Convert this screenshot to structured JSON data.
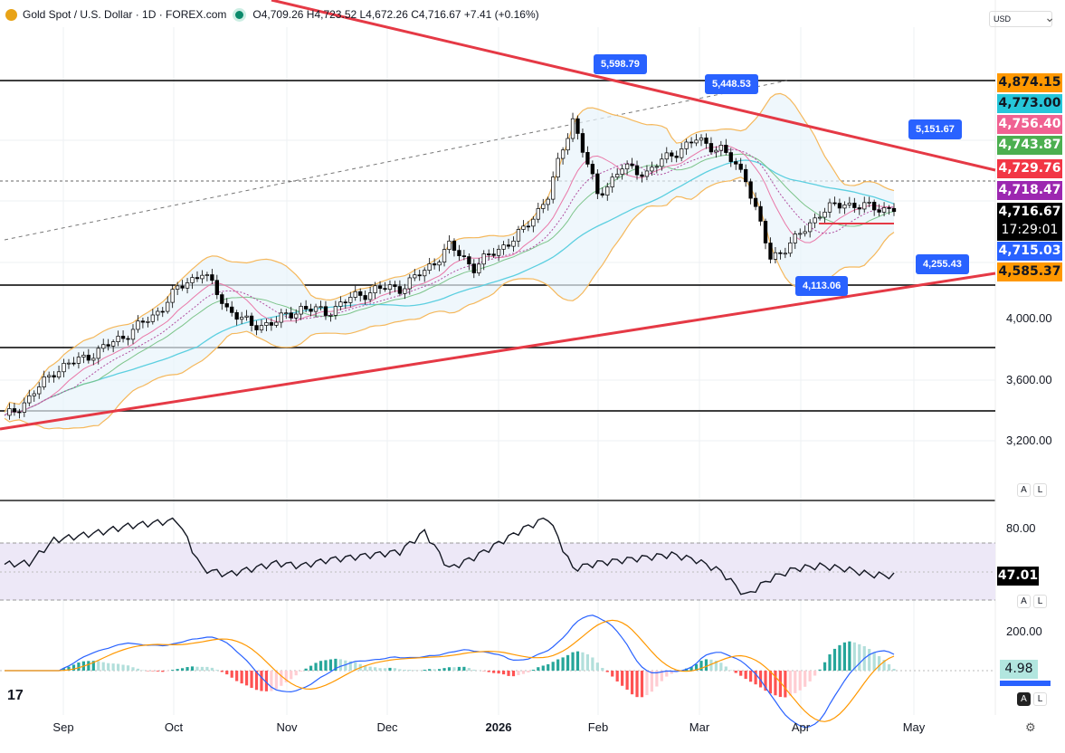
{
  "header": {
    "symbol": "Gold Spot / U.S. Dollar · 1D · FOREX.com",
    "ohlc": "O4,709.26 H4,723.52 L4,672.26 C4,716.67 +7.41 (+0.16%)"
  },
  "currency": "USD",
  "price_labels": [
    {
      "text": "4,874.15",
      "bg": "#ff9800",
      "fg": "#131722"
    },
    {
      "text": "4,773.00",
      "bg": "#26c6da",
      "fg": "#131722"
    },
    {
      "text": "4,756.40",
      "bg": "#f06292",
      "fg": "#ffffff"
    },
    {
      "text": "4,743.87",
      "bg": "#4caf50",
      "fg": "#ffffff"
    },
    {
      "text": "4,729.76",
      "bg": "#f23645",
      "fg": "#ffffff"
    },
    {
      "text": "4,718.47",
      "bg": "#9c27b0",
      "fg": "#ffffff"
    },
    {
      "text": "4,716.67",
      "bg": "#000000",
      "fg": "#ffffff"
    },
    {
      "text": "17:29:01",
      "bg": "#000000",
      "fg": "#ffffff"
    },
    {
      "text": "4,715.03",
      "bg": "#2962ff",
      "fg": "#ffffff"
    },
    {
      "text": "4,585.37",
      "bg": "#ff9800",
      "fg": "#131722"
    }
  ],
  "price_axis": [
    "4,000.00",
    "3,600.00",
    "3,200.00"
  ],
  "rsi_axis": {
    "top": "80.00",
    "value": "47.01"
  },
  "macd_axis": {
    "top": "200.00",
    "value": "4.98"
  },
  "callouts": [
    "5,598.79",
    "5,448.53",
    "5,151.67",
    "4,255.43",
    "4,113.06"
  ],
  "months": [
    "Sep",
    "Oct",
    "Nov",
    "Dec",
    "2026",
    "Feb",
    "Mar",
    "Apr",
    "May"
  ],
  "scale_buttons": {
    "a": "A",
    "l": "L"
  },
  "chart_data": {
    "type": "candlestick",
    "weekly_close": [
      3353,
      3482,
      3660,
      3730,
      3806,
      3906,
      4012,
      4190,
      4306,
      4070,
      3950,
      3980,
      4070,
      4040,
      4130,
      4190,
      4200,
      4306,
      4470,
      4335,
      4450,
      4570,
      4800,
      5300,
      4800,
      4980,
      4950,
      5070,
      5160,
      5100,
      4920,
      4390,
      4510,
      4690,
      4750,
      4720,
      4716
    ],
    "rsi_weekly": [
      55,
      56,
      72,
      75,
      78,
      82,
      84,
      86,
      52,
      48,
      52,
      56,
      54,
      58,
      60,
      62,
      64,
      78,
      52,
      60,
      70,
      80,
      88,
      52,
      56,
      58,
      60,
      62,
      58,
      50,
      33,
      45,
      52,
      54,
      52,
      48,
      47
    ],
    "horizontal_levels": [
      5598.79,
      4255.43,
      4000,
      3600,
      3800
    ],
    "colors": {
      "up": "#ffffff",
      "down": "#000000",
      "trend": "#e53945",
      "bb": "#f5b85c",
      "ma_fast": "#e978a8",
      "ma_mid": "#7cc48a",
      "ma_slow": "#5ccfe0"
    }
  }
}
